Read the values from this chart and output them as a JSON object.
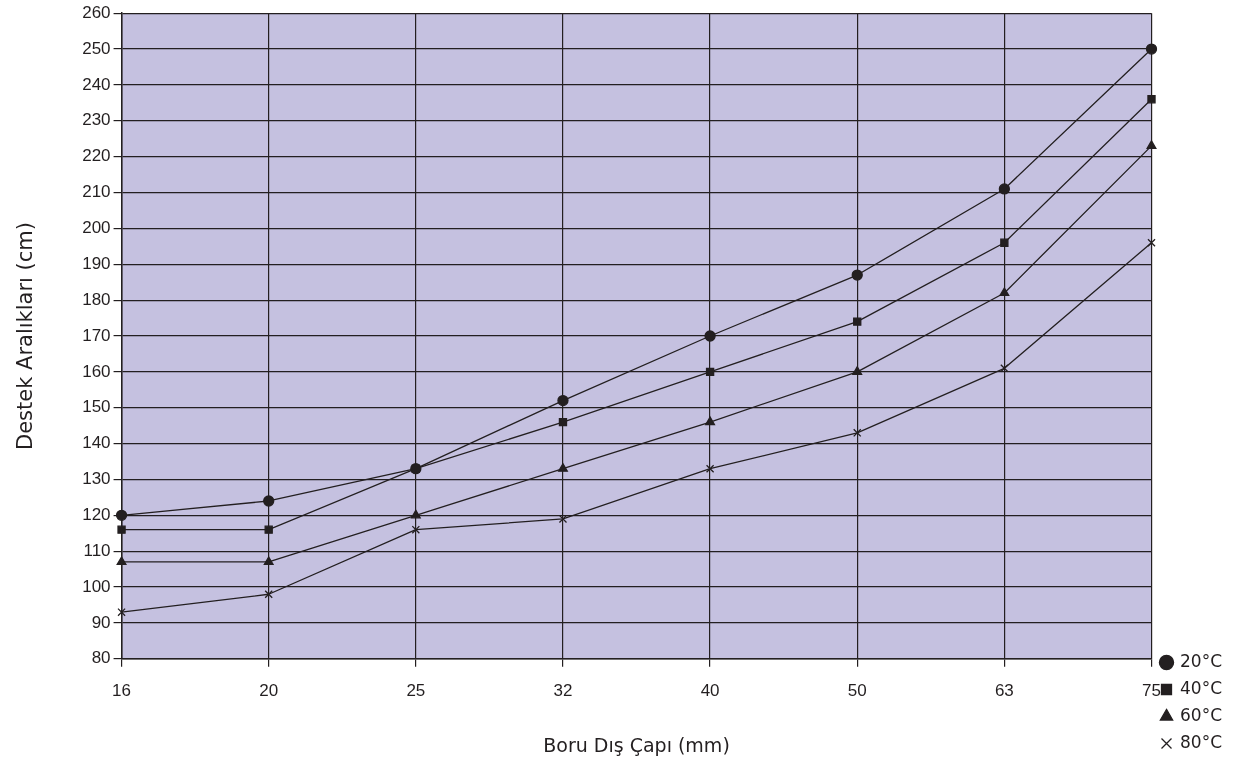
{
  "chart_data": {
    "type": "line",
    "xlabel": "Boru Dış Çapı (mm)",
    "ylabel": "Destek Aralıkları (cm)",
    "categories": [
      "16",
      "20",
      "25",
      "32",
      "40",
      "50",
      "63",
      "75"
    ],
    "ylim": [
      80,
      260
    ],
    "yticks": [
      80,
      90,
      100,
      110,
      120,
      130,
      140,
      150,
      160,
      170,
      180,
      190,
      200,
      210,
      220,
      230,
      240,
      250,
      260
    ],
    "grid": true,
    "legend": "right",
    "line_style": "solid",
    "series": [
      {
        "name": "20°C",
        "color": "#231f20",
        "marker": "circle",
        "values": [
          120,
          124,
          133,
          152,
          170,
          187,
          211,
          250
        ]
      },
      {
        "name": "40°C",
        "color": "#231f20",
        "marker": "square",
        "values": [
          116,
          116,
          133,
          146,
          160,
          174,
          196,
          236
        ]
      },
      {
        "name": "60°C",
        "color": "#231f20",
        "marker": "triangle",
        "values": [
          107,
          107,
          120,
          133,
          146,
          160,
          182,
          223
        ]
      },
      {
        "name": "80°C",
        "color": "#231f20",
        "marker": "cross",
        "values": [
          93,
          98,
          116,
          119,
          133,
          143,
          161,
          196
        ]
      }
    ]
  }
}
